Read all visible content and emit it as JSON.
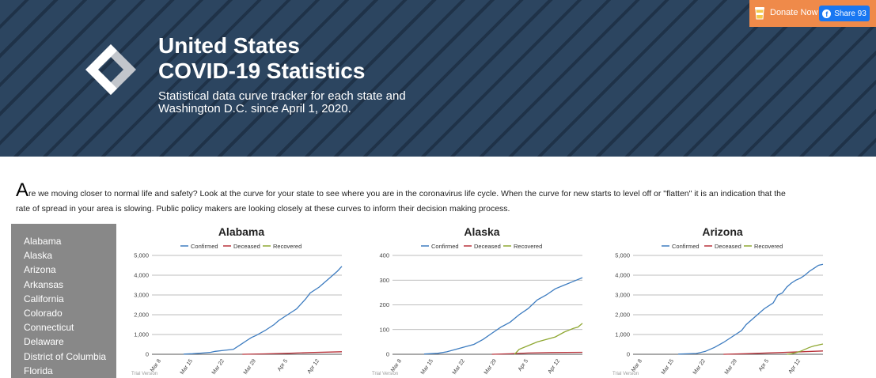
{
  "header": {
    "title_line1": "United States",
    "title_line2": "COVID-19 Statistics",
    "subtitle_line1": "Statistical data curve tracker for each state and",
    "subtitle_line2": "Washington D.C. since April 1, 2020."
  },
  "topbar": {
    "donate_label": "Donate Now",
    "donate_icon": "coffee-cup-icon",
    "share_label": "Share 93",
    "share_icon": "facebook-icon"
  },
  "colors": {
    "banner": "#2c4560",
    "donate_bar": "#ef8a4a",
    "facebook": "#1877f2",
    "sidebar": "#888888",
    "confirmed": "#3d7cc0",
    "deceased": "#b8323a",
    "recovered": "#8fa832"
  },
  "intro": {
    "dropcap": "A",
    "text": "re we moving closer to normal life and safety? Look at the curve for your state to see where you are in the coronavirus life cycle. When the curve for new starts to level off or \"flatten\" it is an indication that the rate of spread in your area is slowing. Public policy makers are looking closely at these curves to inform their decision making process."
  },
  "sidebar": {
    "items": [
      "Alabama",
      "Alaska",
      "Arizona",
      "Arkansas",
      "California",
      "Colorado",
      "Connecticut",
      "Delaware",
      "District of Columbia",
      "Florida"
    ]
  },
  "chart_data": [
    {
      "type": "line",
      "title": "Alabama",
      "watermark": "Trial Version",
      "x_ticks": [
        "Mar 8",
        "Mar 15",
        "Mar 22",
        "Mar 29",
        "Apr 5",
        "Apr 12"
      ],
      "x_range": [
        0,
        42
      ],
      "ylim": [
        0,
        5000
      ],
      "y_ticks": [
        0,
        1000,
        2000,
        3000,
        4000,
        5000
      ],
      "y_tick_labels": [
        "0",
        "1,000",
        "2,000",
        "3,000",
        "4,000",
        "5,000"
      ],
      "legend": "top",
      "grid": true,
      "series": [
        {
          "name": "Confirmed",
          "color": "#3d7cc0",
          "x": [
            7,
            9,
            11,
            13,
            14,
            16,
            18,
            20,
            21,
            22,
            23,
            25,
            27,
            28,
            30,
            32,
            34,
            35,
            37,
            38,
            39,
            40,
            41,
            42
          ],
          "values": [
            10,
            30,
            60,
            100,
            150,
            200,
            250,
            550,
            700,
            850,
            950,
            1200,
            1500,
            1700,
            2000,
            2300,
            2800,
            3100,
            3400,
            3600,
            3800,
            4000,
            4200,
            4450
          ]
        },
        {
          "name": "Deceased",
          "color": "#b8323a",
          "x": [
            20,
            25,
            30,
            35,
            42
          ],
          "values": [
            0,
            20,
            50,
            90,
            130
          ]
        },
        {
          "name": "Recovered",
          "color": "#8fa832",
          "x": [],
          "values": []
        }
      ]
    },
    {
      "type": "line",
      "title": "Alaska",
      "watermark": "Trial Version",
      "x_ticks": [
        "Mar 8",
        "Mar 15",
        "Mar 22",
        "Mar 29",
        "Apr 5",
        "Apr 12"
      ],
      "x_range": [
        0,
        42
      ],
      "ylim": [
        0,
        400
      ],
      "y_ticks": [
        0,
        100,
        200,
        300,
        400
      ],
      "y_tick_labels": [
        "0",
        "100",
        "200",
        "300",
        "400"
      ],
      "legend": "top",
      "grid": true,
      "series": [
        {
          "name": "Confirmed",
          "color": "#3d7cc0",
          "x": [
            7,
            10,
            12,
            14,
            16,
            18,
            20,
            22,
            24,
            26,
            28,
            30,
            32,
            34,
            36,
            38,
            40,
            42
          ],
          "values": [
            1,
            4,
            10,
            20,
            30,
            40,
            60,
            85,
            110,
            130,
            160,
            185,
            220,
            240,
            265,
            280,
            295,
            310
          ]
        },
        {
          "name": "Deceased",
          "color": "#b8323a",
          "x": [
            22,
            26,
            30,
            35,
            42
          ],
          "values": [
            0,
            2,
            5,
            7,
            8
          ]
        },
        {
          "name": "Recovered",
          "color": "#8fa832",
          "x": [
            27,
            28,
            30,
            32,
            34,
            36,
            38,
            40,
            41,
            42
          ],
          "values": [
            0,
            20,
            35,
            50,
            60,
            70,
            90,
            105,
            110,
            125
          ]
        }
      ]
    },
    {
      "type": "line",
      "title": "Arizona",
      "watermark": "Trial Version",
      "x_ticks": [
        "Mar 8",
        "Mar 15",
        "Mar 22",
        "Mar 29",
        "Apr 5",
        "Apr 12"
      ],
      "x_range": [
        0,
        42
      ],
      "ylim": [
        0,
        5000
      ],
      "y_ticks": [
        0,
        1000,
        2000,
        3000,
        4000,
        5000
      ],
      "y_tick_labels": [
        "0",
        "1,000",
        "2,000",
        "3,000",
        "4,000",
        "5,000"
      ],
      "legend": "top",
      "grid": true,
      "series": [
        {
          "name": "Confirmed",
          "color": "#3d7cc0",
          "x": [
            10,
            14,
            16,
            18,
            20,
            22,
            24,
            25,
            27,
            29,
            31,
            32,
            33,
            34,
            35,
            36,
            37,
            38,
            39,
            40,
            41,
            42
          ],
          "values": [
            10,
            40,
            150,
            350,
            600,
            900,
            1200,
            1500,
            1900,
            2300,
            2600,
            3000,
            3100,
            3400,
            3600,
            3750,
            3850,
            4000,
            4200,
            4350,
            4500,
            4550
          ]
        },
        {
          "name": "Deceased",
          "color": "#b8323a",
          "x": [
            20,
            25,
            30,
            35,
            42
          ],
          "values": [
            0,
            30,
            70,
            110,
            170
          ]
        },
        {
          "name": "Recovered",
          "color": "#8fa832",
          "x": [
            34,
            35,
            36,
            37,
            38,
            39,
            40,
            41,
            42
          ],
          "values": [
            0,
            30,
            80,
            150,
            250,
            350,
            420,
            470,
            520
          ]
        }
      ]
    }
  ]
}
